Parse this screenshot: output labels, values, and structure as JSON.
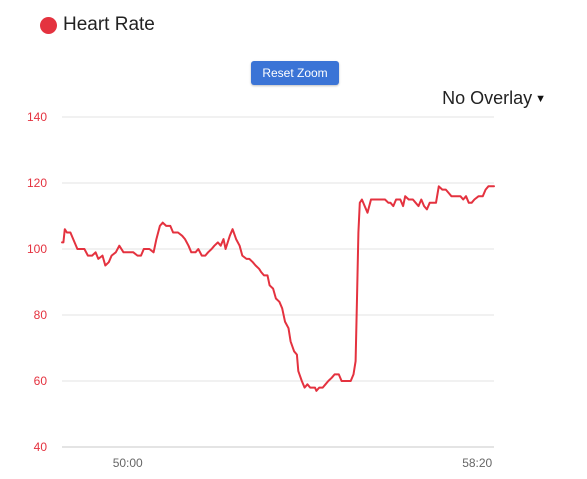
{
  "legend": {
    "label": "Heart Rate",
    "color": "#e4323f"
  },
  "toolbar": {
    "reset_zoom_label": "Reset Zoom"
  },
  "overlay": {
    "label": "No Overlay",
    "caret_icon": "caret-down-icon"
  },
  "chart_data": {
    "type": "line",
    "title": "",
    "xlabel": "",
    "ylabel": "",
    "x_unit": "elapsed time (mm:ss)",
    "ylim": [
      40,
      140
    ],
    "y_ticks": [
      40,
      60,
      80,
      100,
      120,
      140
    ],
    "x_ticks": [
      "50:00",
      "58:20"
    ],
    "grid": true,
    "line_color": "#e4323f",
    "axis_label_color": "#e4323f",
    "series": [
      {
        "name": "Heart Rate",
        "points": [
          [
            "48:26",
            102
          ],
          [
            "48:28",
            102
          ],
          [
            "48:30",
            106
          ],
          [
            "48:33",
            105
          ],
          [
            "48:38",
            105
          ],
          [
            "48:42",
            103
          ],
          [
            "48:48",
            100
          ],
          [
            "48:52",
            100
          ],
          [
            "48:58",
            100
          ],
          [
            "49:03",
            98
          ],
          [
            "49:09",
            98
          ],
          [
            "49:14",
            99
          ],
          [
            "49:18",
            97
          ],
          [
            "49:24",
            98
          ],
          [
            "49:28",
            95
          ],
          [
            "49:33",
            96
          ],
          [
            "49:37",
            98
          ],
          [
            "49:43",
            99
          ],
          [
            "49:48",
            101
          ],
          [
            "49:54",
            99
          ],
          [
            "50:00",
            99
          ],
          [
            "50:08",
            99
          ],
          [
            "50:14",
            98
          ],
          [
            "50:19",
            98
          ],
          [
            "50:23",
            100
          ],
          [
            "50:31",
            100
          ],
          [
            "50:37",
            99
          ],
          [
            "50:41",
            103
          ],
          [
            "50:46",
            107
          ],
          [
            "50:50",
            108
          ],
          [
            "50:55",
            107
          ],
          [
            "51:01",
            107
          ],
          [
            "51:05",
            105
          ],
          [
            "51:12",
            105
          ],
          [
            "51:18",
            104
          ],
          [
            "51:22",
            103
          ],
          [
            "51:27",
            101
          ],
          [
            "51:31",
            99
          ],
          [
            "51:37",
            99
          ],
          [
            "51:41",
            100
          ],
          [
            "51:46",
            98
          ],
          [
            "51:51",
            98
          ],
          [
            "51:55",
            99
          ],
          [
            "52:00",
            100
          ],
          [
            "52:04",
            101
          ],
          [
            "52:09",
            102
          ],
          [
            "52:13",
            101
          ],
          [
            "52:17",
            103
          ],
          [
            "52:20",
            100
          ],
          [
            "52:26",
            104
          ],
          [
            "52:30",
            106
          ],
          [
            "52:35",
            103
          ],
          [
            "52:40",
            101
          ],
          [
            "52:44",
            98
          ],
          [
            "52:50",
            97
          ],
          [
            "52:54",
            97
          ],
          [
            "52:59",
            96
          ],
          [
            "53:03",
            95
          ],
          [
            "53:08",
            94
          ],
          [
            "53:11",
            93
          ],
          [
            "53:15",
            92
          ],
          [
            "53:20",
            92
          ],
          [
            "53:23",
            89
          ],
          [
            "53:28",
            88
          ],
          [
            "53:32",
            85
          ],
          [
            "53:37",
            84
          ],
          [
            "53:41",
            82
          ],
          [
            "53:45",
            78
          ],
          [
            "53:50",
            76
          ],
          [
            "53:53",
            72
          ],
          [
            "53:58",
            69
          ],
          [
            "54:02",
            68
          ],
          [
            "54:04",
            63
          ],
          [
            "54:09",
            60
          ],
          [
            "54:13",
            58
          ],
          [
            "54:17",
            59
          ],
          [
            "54:21",
            58
          ],
          [
            "54:28",
            58
          ],
          [
            "54:30",
            57
          ],
          [
            "54:34",
            58
          ],
          [
            "54:39",
            58
          ],
          [
            "54:43",
            59
          ],
          [
            "54:47",
            60
          ],
          [
            "54:52",
            61
          ],
          [
            "54:56",
            62
          ],
          [
            "55:02",
            62
          ],
          [
            "55:06",
            60
          ],
          [
            "55:11",
            60
          ],
          [
            "55:15",
            60
          ],
          [
            "55:19",
            60
          ],
          [
            "55:23",
            62
          ],
          [
            "55:26",
            66
          ],
          [
            "55:28",
            85
          ],
          [
            "55:30",
            105
          ],
          [
            "55:32",
            114
          ],
          [
            "55:35",
            115
          ],
          [
            "55:39",
            113
          ],
          [
            "55:43",
            111
          ],
          [
            "55:48",
            115
          ],
          [
            "55:52",
            115
          ],
          [
            "56:00",
            115
          ],
          [
            "56:08",
            115
          ],
          [
            "56:13",
            114
          ],
          [
            "56:16",
            114
          ],
          [
            "56:20",
            113
          ],
          [
            "56:24",
            115
          ],
          [
            "56:30",
            115
          ],
          [
            "56:34",
            113
          ],
          [
            "56:37",
            116
          ],
          [
            "56:42",
            115
          ],
          [
            "56:48",
            115
          ],
          [
            "56:52",
            114
          ],
          [
            "56:56",
            113
          ],
          [
            "57:00",
            115
          ],
          [
            "57:04",
            113
          ],
          [
            "57:08",
            112
          ],
          [
            "57:12",
            114
          ],
          [
            "57:16",
            114
          ],
          [
            "57:21",
            114
          ],
          [
            "57:25",
            119
          ],
          [
            "57:30",
            118
          ],
          [
            "57:35",
            118
          ],
          [
            "57:39",
            117
          ],
          [
            "57:43",
            116
          ],
          [
            "57:50",
            116
          ],
          [
            "57:56",
            116
          ],
          [
            "58:00",
            115
          ],
          [
            "58:04",
            116
          ],
          [
            "58:08",
            114
          ],
          [
            "58:12",
            114
          ],
          [
            "58:16",
            115
          ],
          [
            "58:22",
            116
          ],
          [
            "58:28",
            116
          ],
          [
            "58:32",
            118
          ],
          [
            "58:36",
            119
          ],
          [
            "58:44",
            119
          ]
        ]
      }
    ]
  }
}
